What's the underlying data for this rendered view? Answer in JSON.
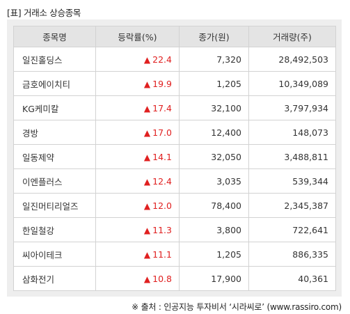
{
  "title": "[표] 거래소 상승종목",
  "columns": [
    "종목명",
    "등락률(%)",
    "종가(원)",
    "거래량(주)"
  ],
  "rows": [
    {
      "name": "일진홀딩스",
      "rate": "22.4",
      "close": "7,320",
      "volume": "28,492,503"
    },
    {
      "name": "금호에이치티",
      "rate": "19.9",
      "close": "1,205",
      "volume": "10,349,089"
    },
    {
      "name": "KG케미칼",
      "rate": "17.4",
      "close": "32,100",
      "volume": "3,797,934"
    },
    {
      "name": "경방",
      "rate": "17.0",
      "close": "12,400",
      "volume": "148,073"
    },
    {
      "name": "일동제약",
      "rate": "14.1",
      "close": "32,050",
      "volume": "3,488,811"
    },
    {
      "name": "이엔플러스",
      "rate": "12.4",
      "close": "3,035",
      "volume": "539,344"
    },
    {
      "name": "일진머티리얼즈",
      "rate": "12.0",
      "close": "78,400",
      "volume": "2,345,387"
    },
    {
      "name": "한일철강",
      "rate": "11.3",
      "close": "3,800",
      "volume": "722,641"
    },
    {
      "name": "씨아이테크",
      "rate": "11.1",
      "close": "1,205",
      "volume": "886,335"
    },
    {
      "name": "삼화전기",
      "rate": "10.8",
      "close": "17,900",
      "volume": "40,361"
    }
  ],
  "up_symbol": "▲",
  "up_color": "#e02020",
  "source": "※ 출처 : 인공지능 투자비서 ‘시라씨로’ (www.rassiro.com)"
}
